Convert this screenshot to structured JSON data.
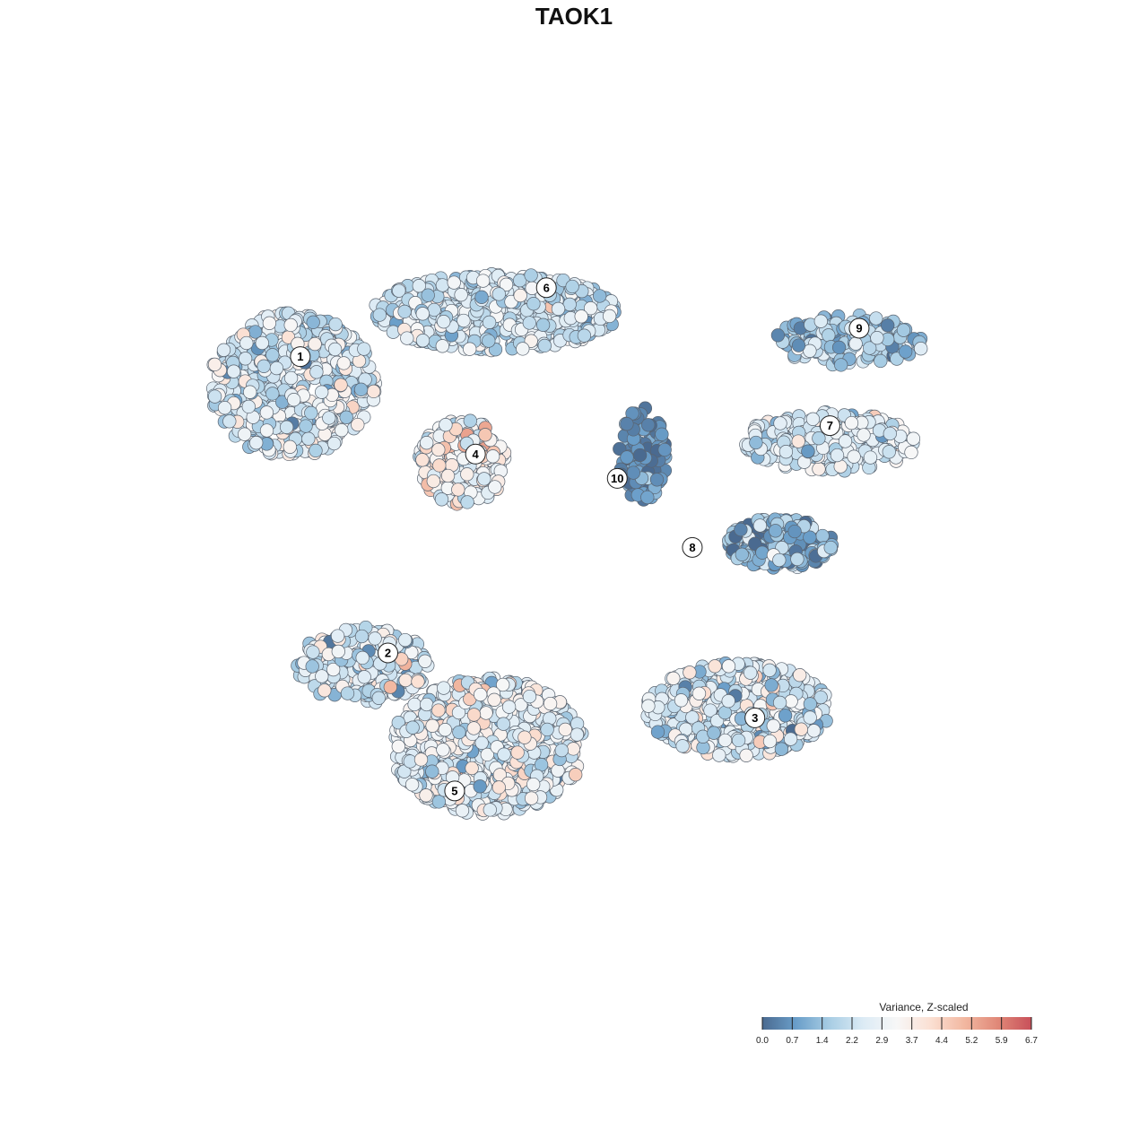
{
  "chart_data": {
    "type": "scatter",
    "title": "TAOK1",
    "xlabel": "",
    "ylabel": "",
    "xlim": [
      0,
      100
    ],
    "ylim": [
      0,
      100
    ],
    "grid": false,
    "legend": {
      "title": "Variance, Z-scaled",
      "placement": "bottom-right",
      "ticks": [
        "0.0",
        "0.7",
        "1.4",
        "2.2",
        "2.9",
        "3.7",
        "4.4",
        "5.2",
        "5.9",
        "6.7"
      ],
      "min": 0.0,
      "max": 6.7,
      "colors": [
        "#4a6a90",
        "#6a9ec9",
        "#a8cde4",
        "#dcebf5",
        "#f7f7f7",
        "#fbe0d3",
        "#f2b8a1",
        "#e08878",
        "#c8505a"
      ]
    },
    "clusters": [
      {
        "id": "1",
        "cx": 13.5,
        "cy": 73.0,
        "sx": 9.5,
        "sy": 8.5,
        "n": 520,
        "mean": 2.5,
        "sd": 0.8
      },
      {
        "id": "6",
        "cx": 38.0,
        "cy": 82.0,
        "sx": 14.0,
        "sy": 4.5,
        "n": 620,
        "mean": 2.4,
        "sd": 0.7
      },
      {
        "id": "4",
        "cx": 34.0,
        "cy": 63.5,
        "sx": 5.0,
        "sy": 5.0,
        "n": 260,
        "mean": 3.4,
        "sd": 0.8
      },
      {
        "id": "10",
        "cx": 55.5,
        "cy": 64.5,
        "sx": 2.8,
        "sy": 5.5,
        "n": 110,
        "mean": 0.6,
        "sd": 0.5
      },
      {
        "id": "9",
        "cx": 80.5,
        "cy": 78.5,
        "sx": 8.5,
        "sy": 3.0,
        "n": 170,
        "mean": 1.7,
        "sd": 0.7
      },
      {
        "id": "7",
        "cx": 78.0,
        "cy": 66.0,
        "sx": 10.0,
        "sy": 3.5,
        "n": 240,
        "mean": 2.6,
        "sd": 0.7
      },
      {
        "id": "8",
        "cx": 72.0,
        "cy": 53.5,
        "sx": 6.0,
        "sy": 3.0,
        "n": 200,
        "mean": 1.2,
        "sd": 0.9
      },
      {
        "id": "2",
        "cx": 22.0,
        "cy": 38.5,
        "sx": 7.5,
        "sy": 4.5,
        "n": 240,
        "mean": 2.5,
        "sd": 0.9
      },
      {
        "id": "3",
        "cx": 67.0,
        "cy": 33.0,
        "sx": 10.5,
        "sy": 5.5,
        "n": 520,
        "mean": 2.5,
        "sd": 0.8
      },
      {
        "id": "5",
        "cx": 37.0,
        "cy": 28.5,
        "sx": 11.0,
        "sy": 8.0,
        "n": 880,
        "mean": 2.9,
        "sd": 0.8
      }
    ],
    "cluster_labels": [
      {
        "id": "1",
        "x": 14.5,
        "y": 76.5
      },
      {
        "id": "6",
        "x": 44.0,
        "y": 85.0
      },
      {
        "id": "9",
        "x": 81.5,
        "y": 80.0
      },
      {
        "id": "7",
        "x": 78.0,
        "y": 68.0
      },
      {
        "id": "4",
        "x": 35.5,
        "y": 64.5
      },
      {
        "id": "10",
        "x": 52.5,
        "y": 61.5
      },
      {
        "id": "8",
        "x": 61.5,
        "y": 53.0
      },
      {
        "id": "2",
        "x": 25.0,
        "y": 40.0
      },
      {
        "id": "3",
        "x": 69.0,
        "y": 32.0
      },
      {
        "id": "5",
        "x": 33.0,
        "y": 23.0
      }
    ]
  }
}
